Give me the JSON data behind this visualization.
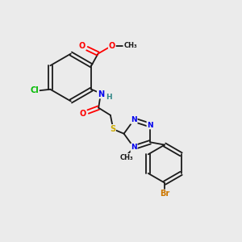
{
  "bg_color": "#ebebeb",
  "bond_color": "#1a1a1a",
  "bond_width": 1.3,
  "atom_colors": {
    "O": "#ff0000",
    "N": "#0000ee",
    "S": "#ccaa00",
    "Cl": "#00bb00",
    "Br": "#cc7700",
    "H": "#338888",
    "C": "#1a1a1a"
  },
  "font_size": 6.5
}
